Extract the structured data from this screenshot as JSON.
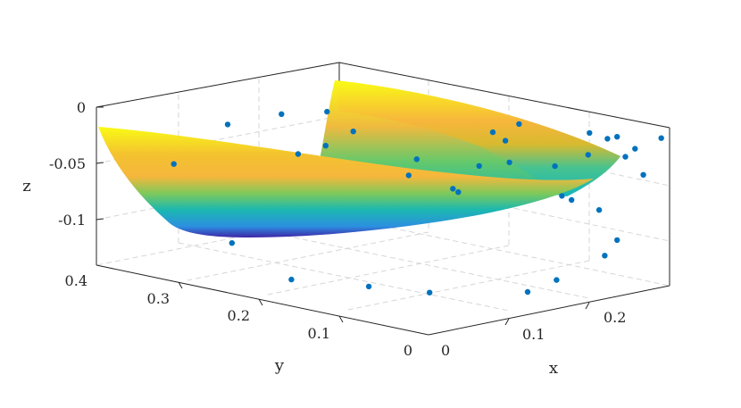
{
  "chart_data": {
    "type": "surface3d",
    "title": "",
    "xlabel": "x",
    "ylabel": "y",
    "zlabel": "z",
    "xlim": [
      0,
      0.25
    ],
    "ylim": [
      0,
      0.4
    ],
    "zlim": [
      -0.13,
      0
    ],
    "xticks": [
      "0",
      "0.1",
      "0.2"
    ],
    "yticks": [
      "0",
      "0.1",
      "0.2",
      "0.3",
      "0.4"
    ],
    "zticks": [
      "0",
      "-0.05",
      "-0.1"
    ],
    "grid": true,
    "colormap": "parula",
    "colors": {
      "points": "#0072bd",
      "surface_low": "#3e26a8",
      "surface_mid": "#1bb8b0",
      "surface_high": "#f9fb15",
      "axes": "#262626",
      "grid": "#d6d6d6"
    },
    "surface": {
      "description_free": true
    },
    "points": [
      {
        "x": 0.02,
        "y": 0.33,
        "z": -0.04
      },
      {
        "x": 0.02,
        "y": 0.26,
        "z": -0.095
      },
      {
        "x": 0.03,
        "y": 0.2,
        "z": -0.118
      },
      {
        "x": 0.05,
        "y": 0.13,
        "z": -0.117
      },
      {
        "x": 0.07,
        "y": 0.08,
        "z": -0.118
      },
      {
        "x": 0.12,
        "y": 0.02,
        "z": -0.117
      },
      {
        "x": 0.15,
        "y": 0.02,
        "z": -0.112
      },
      {
        "x": 0.2,
        "y": 0.02,
        "z": -0.1
      },
      {
        "x": 0.05,
        "y": 0.3,
        "z": -0.008
      },
      {
        "x": 0.08,
        "y": 0.27,
        "z": 0.0
      },
      {
        "x": 0.11,
        "y": 0.25,
        "z": 0.0
      },
      {
        "x": 0.08,
        "y": 0.25,
        "z": -0.03
      },
      {
        "x": 0.1,
        "y": 0.24,
        "z": -0.025
      },
      {
        "x": 0.12,
        "y": 0.23,
        "z": -0.015
      },
      {
        "x": 0.16,
        "y": 0.2,
        "z": -0.04
      },
      {
        "x": 0.16,
        "y": 0.15,
        "z": -0.06
      },
      {
        "x": 0.17,
        "y": 0.12,
        "z": -0.008
      },
      {
        "x": 0.17,
        "y": 0.1,
        "z": -0.03
      },
      {
        "x": 0.2,
        "y": 0.08,
        "z": -0.035
      },
      {
        "x": 0.18,
        "y": 0.1,
        "z": 0.0
      },
      {
        "x": 0.2,
        "y": 0.06,
        "z": -0.06
      },
      {
        "x": 0.22,
        "y": 0.05,
        "z": -0.07
      },
      {
        "x": 0.23,
        "y": 0.04,
        "z": -0.01
      },
      {
        "x": 0.24,
        "y": 0.03,
        "z": -0.02
      },
      {
        "x": 0.24,
        "y": 0.02,
        "z": -0.04
      },
      {
        "x": 0.25,
        "y": 0.01,
        "z": -0.01
      },
      {
        "x": 0.23,
        "y": 0.04,
        "z": -0.095
      },
      {
        "x": 0.2,
        "y": 0.04,
        "z": -0.02
      },
      {
        "x": 0.21,
        "y": 0.05,
        "z": -0.005
      },
      {
        "x": 0.22,
        "y": 0.04,
        "z": -0.01
      },
      {
        "x": 0.23,
        "y": 0.03,
        "z": -0.025
      },
      {
        "x": 0.19,
        "y": 0.06,
        "z": -0.055
      },
      {
        "x": 0.14,
        "y": 0.07,
        "z": -0.003
      },
      {
        "x": 0.13,
        "y": 0.09,
        "z": -0.025
      },
      {
        "x": 0.12,
        "y": 0.11,
        "z": -0.045
      },
      {
        "x": 0.1,
        "y": 0.14,
        "z": -0.035
      }
    ]
  }
}
